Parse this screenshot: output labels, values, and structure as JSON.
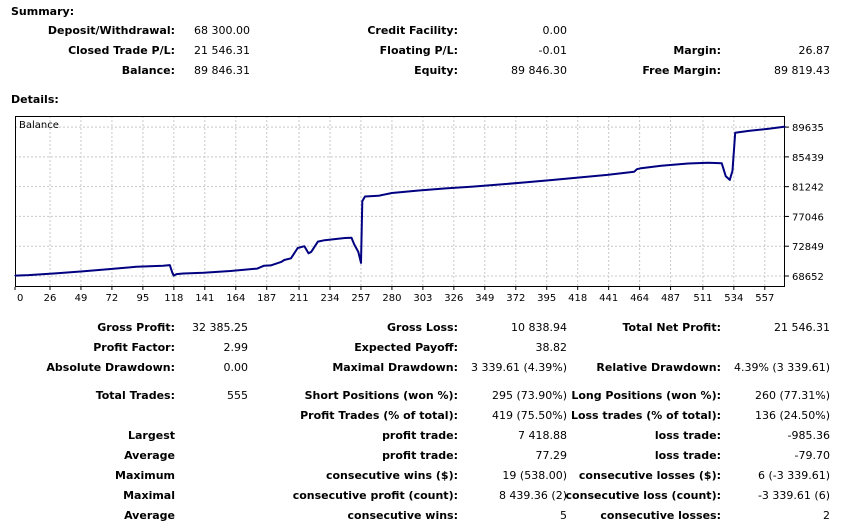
{
  "summary": {
    "title": "Summary:",
    "deposit_label": "Deposit/Withdrawal:",
    "deposit_value": "68 300.00",
    "closed_pl_label": "Closed Trade P/L:",
    "closed_pl_value": "21 546.31",
    "balance_label": "Balance:",
    "balance_value": "89 846.31",
    "credit_label": "Credit Facility:",
    "credit_value": "0.00",
    "floating_label": "Floating P/L:",
    "floating_value": "-0.01",
    "equity_label": "Equity:",
    "equity_value": "89 846.30",
    "margin_label": "Margin:",
    "margin_value": "26.87",
    "free_margin_label": "Free Margin:",
    "free_margin_value": "89 819.43"
  },
  "details": {
    "title": "Details:",
    "rows": [
      {
        "l1": "Gross Profit:",
        "v1": "32 385.25",
        "l2": "Gross Loss:",
        "v2": "10 838.94",
        "l3": "Total Net Profit:",
        "v3": "21 546.31"
      },
      {
        "l1": "Profit Factor:",
        "v1": "2.99",
        "l2": "Expected Payoff:",
        "v2": "38.82",
        "l3": "",
        "v3": ""
      },
      {
        "l1": "Absolute Drawdown:",
        "v1": "0.00",
        "l2": "Maximal Drawdown:",
        "v2": "3 339.61 (4.39%)",
        "l3": "Relative Drawdown:",
        "v3": "4.39% (3 339.61)"
      },
      {
        "l1": "Total Trades:",
        "v1": "555",
        "l2": "Short Positions (won %):",
        "v2": "295 (73.90%)",
        "l3": "Long Positions (won %):",
        "v3": "260 (77.31%)"
      },
      {
        "l1": "",
        "v1": "",
        "l2": "Profit Trades (% of total):",
        "v2": "419 (75.50%)",
        "l3": "Loss trades (% of total):",
        "v3": "136 (24.50%)"
      },
      {
        "l1": "Largest",
        "v1": "",
        "l2": "profit trade:",
        "v2": "7 418.88",
        "l3": "loss trade:",
        "v3": "-985.36"
      },
      {
        "l1": "Average",
        "v1": "",
        "l2": "profit trade:",
        "v2": "77.29",
        "l3": "loss trade:",
        "v3": "-79.70"
      },
      {
        "l1": "Maximum",
        "v1": "",
        "l2": "consecutive wins ($):",
        "v2": "19 (538.00)",
        "l3": "consecutive losses ($):",
        "v3": "6 (-3 339.61)"
      },
      {
        "l1": "Maximal",
        "v1": "",
        "l2": "consecutive profit (count):",
        "v2": "8 439.36 (2)",
        "l3": "consecutive loss (count):",
        "v3": "-3 339.61 (6)"
      },
      {
        "l1": "Average",
        "v1": "",
        "l2": "consecutive wins:",
        "v2": "5",
        "l3": "consecutive losses:",
        "v3": "2"
      }
    ]
  },
  "colors": {
    "line": "#000080",
    "grid": "#c8c8c8",
    "frame": "#000000"
  },
  "chart_data": {
    "type": "line",
    "title": "Balance",
    "xlabel": "",
    "ylabel": "",
    "x_ticks": [
      "0",
      "26",
      "49",
      "72",
      "95",
      "118",
      "141",
      "164",
      "187",
      "211",
      "234",
      "257",
      "280",
      "303",
      "326",
      "349",
      "372",
      "395",
      "418",
      "441",
      "464",
      "487",
      "511",
      "534",
      "557"
    ],
    "y_ticks": [
      "68652",
      "72849",
      "77046",
      "81242",
      "85439",
      "89635"
    ],
    "xlim": [
      0,
      572
    ],
    "ylim": [
      67100,
      91200
    ],
    "grid": true,
    "series": [
      {
        "x": [
          0,
          10,
          30,
          50,
          70,
          90,
          100,
          110,
          115,
          117,
          118,
          120,
          125,
          140,
          160,
          180,
          185,
          190,
          198,
          200,
          205,
          210,
          215,
          218,
          220,
          225,
          230,
          240,
          245,
          250,
          252,
          255,
          257,
          258,
          260,
          270,
          280,
          300,
          320,
          340,
          360,
          380,
          400,
          420,
          440,
          460,
          462,
          465,
          480,
          500,
          515,
          525,
          528,
          531,
          533,
          535,
          545,
          560,
          572
        ],
        "y": [
          68700,
          68780,
          69020,
          69300,
          69620,
          69950,
          70030,
          70100,
          70180,
          69050,
          68700,
          68920,
          69000,
          69120,
          69350,
          69700,
          70100,
          70150,
          70650,
          70900,
          71150,
          72600,
          72850,
          71850,
          72050,
          73500,
          73700,
          73900,
          74000,
          74050,
          73100,
          72050,
          70500,
          79200,
          79850,
          79950,
          80350,
          80700,
          81000,
          81250,
          81550,
          81850,
          82200,
          82550,
          82900,
          83350,
          83700,
          83850,
          84200,
          84500,
          84600,
          84550,
          82700,
          82200,
          83500,
          88850,
          89100,
          89400,
          89700
        ]
      }
    ]
  }
}
